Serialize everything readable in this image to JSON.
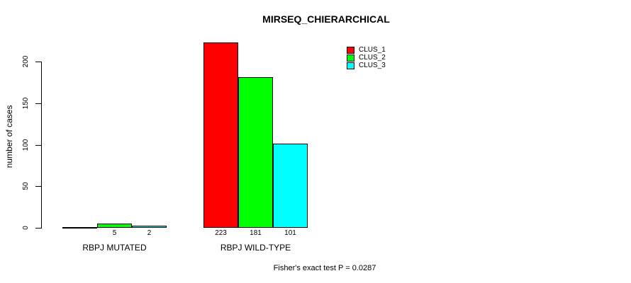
{
  "title": "MIRSEQ_CHIERARCHICAL",
  "y_axis_title": "number of cases",
  "footer": "Fisher's exact test P = 0.0287",
  "chart_data": {
    "type": "bar",
    "title": "MIRSEQ_CHIERARCHICAL",
    "xlabel": "",
    "ylabel": "number of cases",
    "categories": [
      "RBPJ MUTATED",
      "RBPJ WILD-TYPE"
    ],
    "series": [
      {
        "name": "CLUS_1",
        "color": "#ff0000",
        "values": [
          0,
          223
        ]
      },
      {
        "name": "CLUS_2",
        "color": "#00ff00",
        "values": [
          5,
          181
        ]
      },
      {
        "name": "CLUS_3",
        "color": "#00ffff",
        "values": [
          2,
          101
        ]
      }
    ],
    "bar_value_labels": [
      [
        "",
        "223"
      ],
      [
        "5",
        "181"
      ],
      [
        "2",
        "101"
      ]
    ],
    "yticks": [
      0,
      50,
      100,
      150,
      200
    ],
    "ylim": [
      0,
      200
    ],
    "grid": false,
    "legend_position": "topright",
    "annotation": "Fisher's exact test P = 0.0287"
  }
}
